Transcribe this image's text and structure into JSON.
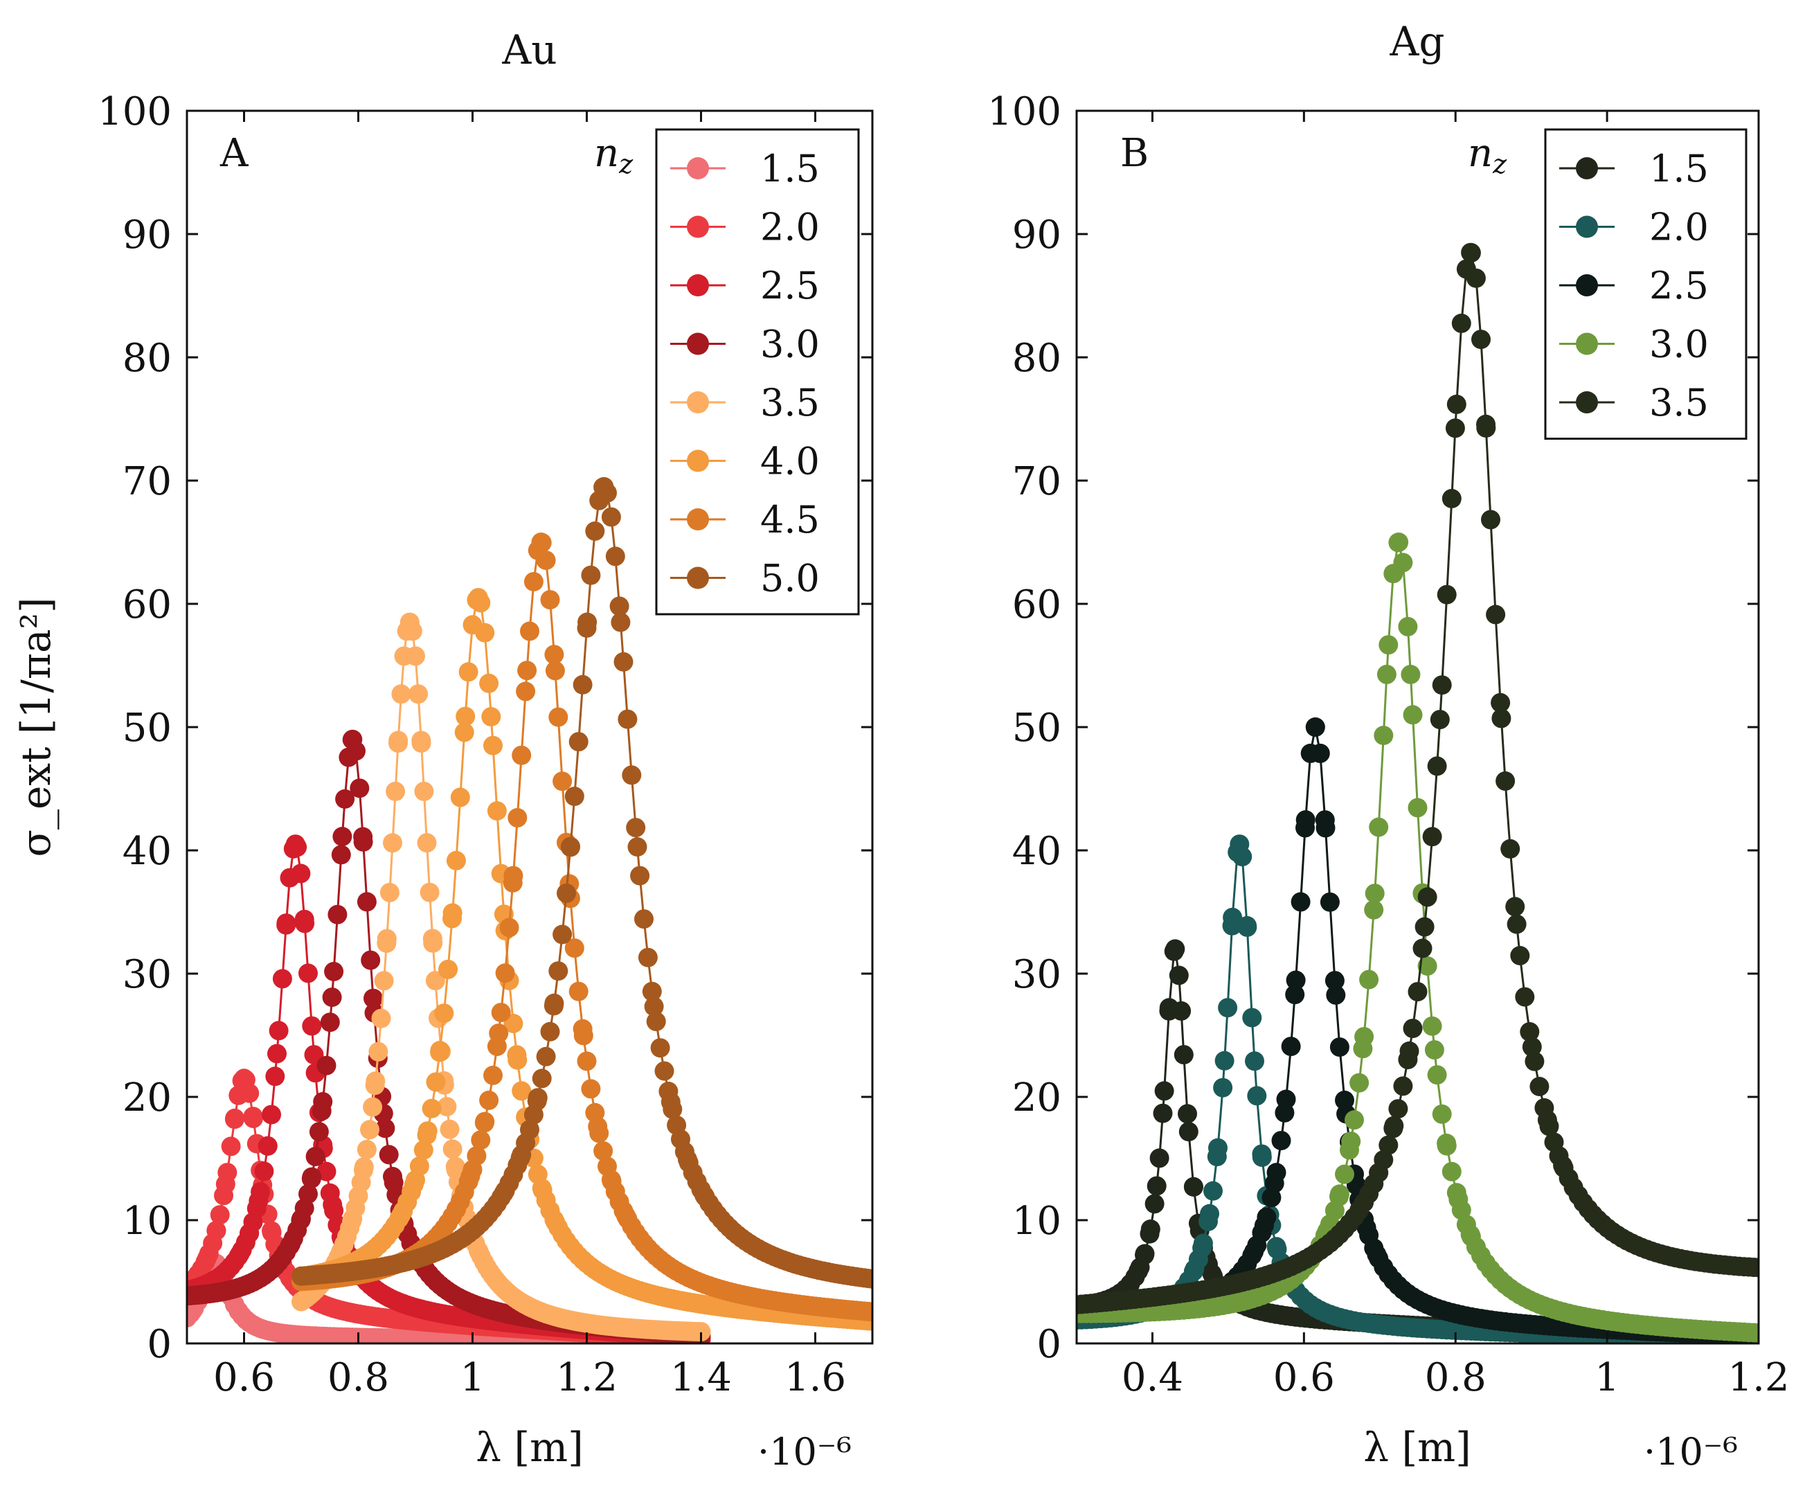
{
  "chart_data": [
    {
      "type": "line",
      "title": "Au",
      "panel_label": "A",
      "xlabel": "λ [m]",
      "x_multiplier": "·10⁻⁶",
      "ylabel": "σ_ext [1/πa²]",
      "legend_title": "n_z",
      "legend_position": "top-right",
      "xlim": [
        0.5,
        1.7
      ],
      "ylim": [
        0,
        100
      ],
      "xticks": [
        0.6,
        0.8,
        1.0,
        1.2,
        1.4,
        1.6
      ],
      "xtick_labels": [
        "0.6",
        "0.8",
        "1",
        "1.2",
        "1.4",
        "1.6"
      ],
      "yticks": [
        0,
        10,
        20,
        30,
        40,
        50,
        60,
        70,
        80,
        90,
        100
      ],
      "ytick_labels": [
        "0",
        "10",
        "20",
        "30",
        "40",
        "50",
        "60",
        "70",
        "80",
        "90",
        "100"
      ],
      "series": [
        {
          "name": "1.5",
          "color": "#ef6f74",
          "peak_x": 0.55,
          "peak_y": 6.5,
          "width": 0.03,
          "base": 0.5,
          "base_right": 0.2,
          "x_start": 0.5,
          "x_end": 1.4
        },
        {
          "name": "2.0",
          "color": "#eb3b40",
          "peak_x": 0.6,
          "peak_y": 21.5,
          "width": 0.036,
          "base": 2.5,
          "base_right": 0.3,
          "x_start": 0.5,
          "x_end": 1.4
        },
        {
          "name": "2.5",
          "color": "#d41e2b",
          "peak_x": 0.69,
          "peak_y": 40.5,
          "width": 0.036,
          "base": 3.0,
          "base_right": 0.3,
          "x_start": 0.5,
          "x_end": 1.4
        },
        {
          "name": "3.0",
          "color": "#a5191f",
          "peak_x": 0.79,
          "peak_y": 49.0,
          "width": 0.04,
          "base": 3.0,
          "base_right": 0.4,
          "x_start": 0.5,
          "x_end": 1.4
        },
        {
          "name": "3.5",
          "color": "#fcad62",
          "peak_x": 0.89,
          "peak_y": 58.5,
          "width": 0.045,
          "base": 0.3,
          "base_right": 0.5,
          "x_start": 0.7,
          "x_end": 1.4
        },
        {
          "name": "4.0",
          "color": "#f39b3e",
          "peak_x": 1.01,
          "peak_y": 60.5,
          "width": 0.05,
          "base": 4.0,
          "base_right": 1.5,
          "x_start": 0.7,
          "x_end": 1.7
        },
        {
          "name": "4.5",
          "color": "#dd7a27",
          "peak_x": 1.12,
          "peak_y": 65.0,
          "width": 0.055,
          "base": 4.0,
          "base_right": 2.0,
          "x_start": 0.7,
          "x_end": 1.7
        },
        {
          "name": "5.0",
          "color": "#a5591e",
          "peak_x": 1.23,
          "peak_y": 69.5,
          "width": 0.065,
          "base": 4.5,
          "base_right": 4.0,
          "x_start": 0.7,
          "x_end": 1.7
        }
      ]
    },
    {
      "type": "line",
      "title": "Ag",
      "panel_label": "B",
      "xlabel": "λ [m]",
      "x_multiplier": "·10⁻⁶",
      "ylabel": "",
      "legend_title": "n_z",
      "legend_position": "top-right",
      "xlim": [
        0.3,
        1.2
      ],
      "ylim": [
        0,
        100
      ],
      "xticks": [
        0.4,
        0.6,
        0.8,
        1.0,
        1.2
      ],
      "xtick_labels": [
        "0.4",
        "0.6",
        "0.8",
        "1",
        "1.2"
      ],
      "yticks": [
        0,
        10,
        20,
        30,
        40,
        50,
        60,
        70,
        80,
        90,
        100
      ],
      "ytick_labels": [
        "0",
        "10",
        "20",
        "30",
        "40",
        "50",
        "60",
        "70",
        "80",
        "90",
        "100"
      ],
      "series": [
        {
          "name": "1.5",
          "color": "#20261a",
          "peak_x": 0.43,
          "peak_y": 32.0,
          "width": 0.018,
          "base": 2.5,
          "base_right": 0.2,
          "x_start": 0.3,
          "x_end": 1.2
        },
        {
          "name": "2.0",
          "color": "#1b5a58",
          "peak_x": 0.515,
          "peak_y": 40.5,
          "width": 0.022,
          "base": 1.5,
          "base_right": 0.3,
          "x_start": 0.3,
          "x_end": 1.2
        },
        {
          "name": "2.5",
          "color": "#0e1a18",
          "peak_x": 0.615,
          "peak_y": 50.0,
          "width": 0.03,
          "base": 2.0,
          "base_right": 0.5,
          "x_start": 0.3,
          "x_end": 1.2
        },
        {
          "name": "3.0",
          "color": "#6f9a3c",
          "peak_x": 0.725,
          "peak_y": 65.0,
          "width": 0.035,
          "base": 2.0,
          "base_right": 0.5,
          "x_start": 0.3,
          "x_end": 1.2
        },
        {
          "name": "3.5",
          "color": "#262c1a",
          "peak_x": 0.82,
          "peak_y": 88.5,
          "width": 0.045,
          "base": 2.5,
          "base_right": 5.0,
          "x_start": 0.3,
          "x_end": 1.2
        }
      ]
    }
  ]
}
